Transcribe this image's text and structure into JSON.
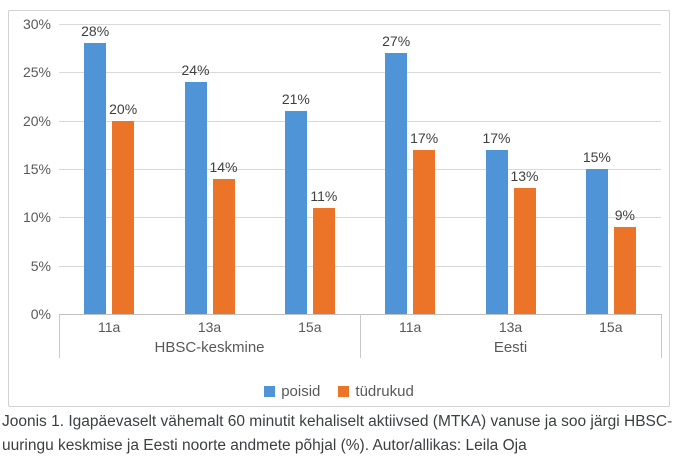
{
  "chart_data": {
    "type": "bar",
    "title": "",
    "groups": [
      {
        "label": "HBSC-keskmine",
        "categories": [
          "11a",
          "13a",
          "15a"
        ]
      },
      {
        "label": "Eesti",
        "categories": [
          "11a",
          "13a",
          "15a"
        ]
      }
    ],
    "categories": [
      "11a",
      "13a",
      "15a",
      "11a",
      "13a",
      "15a"
    ],
    "series": [
      {
        "name": "poisid",
        "color": "#4f94d7",
        "values": [
          28,
          24,
          21,
          27,
          17,
          15
        ]
      },
      {
        "name": "tüdrukud",
        "color": "#ec7428",
        "values": [
          20,
          14,
          11,
          17,
          13,
          9
        ]
      }
    ],
    "data_label_suffix": "%",
    "ylim": [
      0,
      30
    ],
    "ytick_step": 5,
    "ytick_labels": [
      "0%",
      "5%",
      "10%",
      "15%",
      "20%",
      "25%",
      "30%"
    ],
    "grid": true,
    "legend_position": "bottom"
  },
  "colors": {
    "bar_blue": "#4f94d7",
    "bar_orange": "#ec7428",
    "gridline": "#d9d9d9",
    "axis_line": "#c0c0c0",
    "tick_text": "#595959",
    "data_label_text": "#3f3f3f",
    "card_border": "#d2d2d2",
    "caption_text": "#3c4043"
  },
  "caption": "Joonis 1. Igapäevaselt vähemalt 60 minutit kehaliselt aktiivsed (MTKA) vanuse ja soo järgi HBSC-uuringu keskmise ja Eesti noorte andmete põhjal (%). Autor/allikas: Leila Oja"
}
